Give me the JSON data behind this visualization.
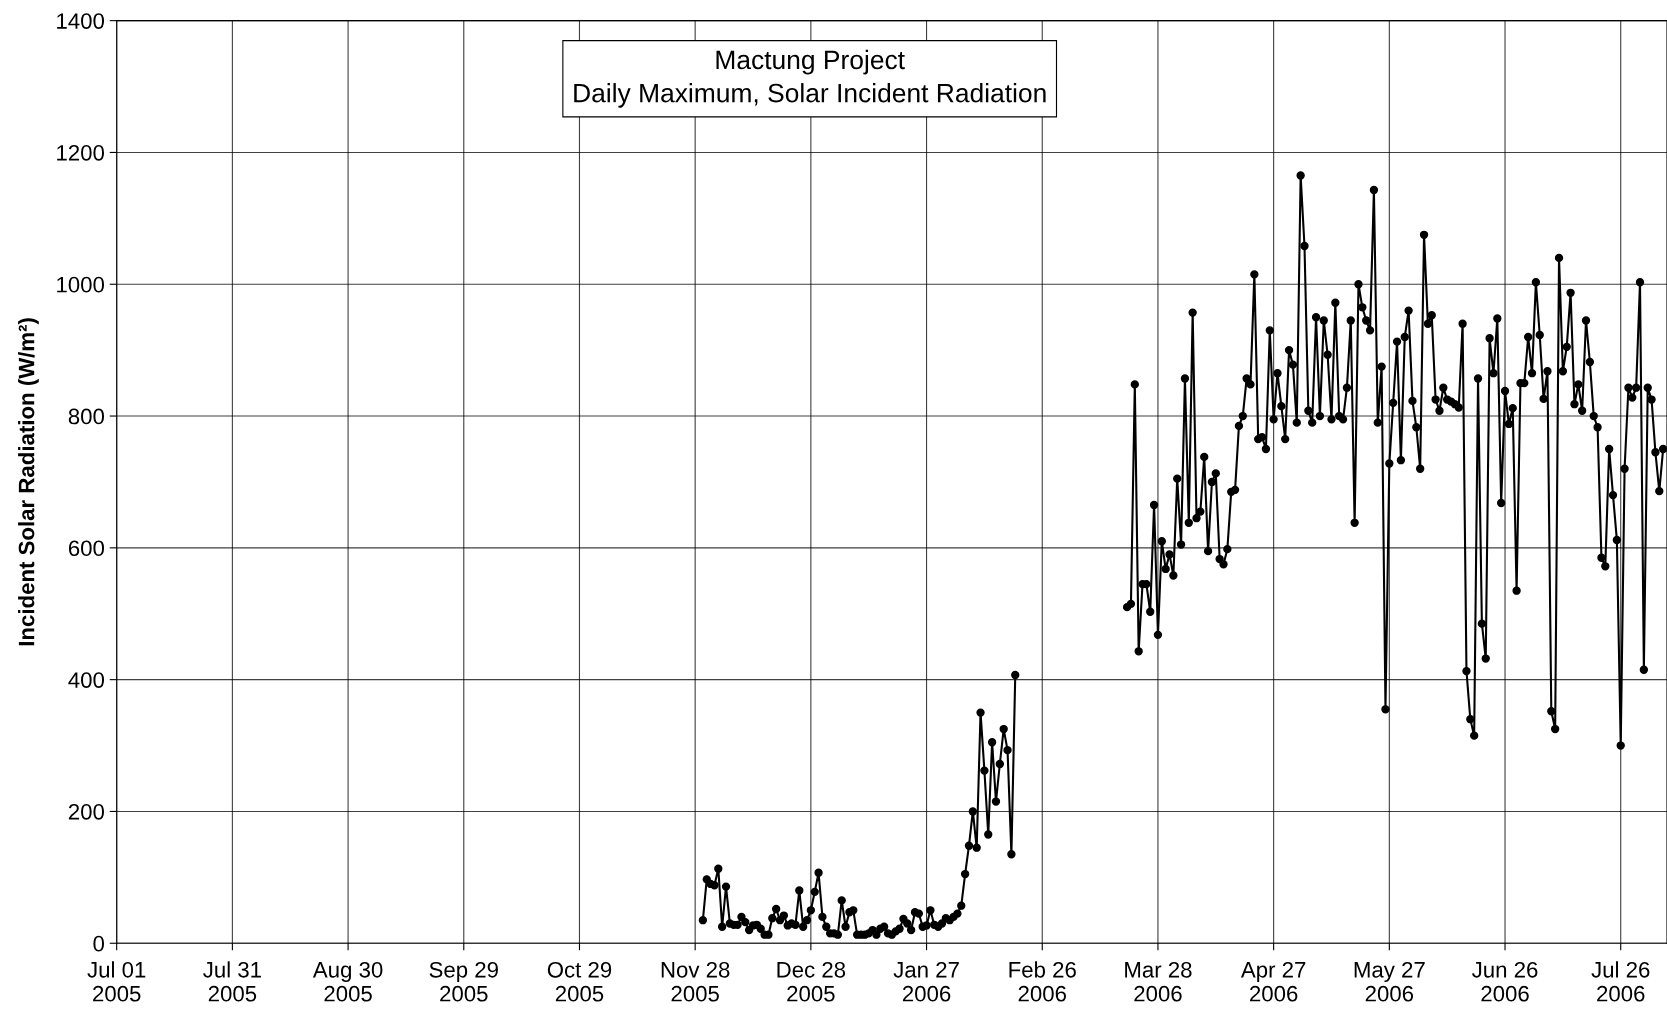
{
  "chart_data": {
    "type": "line",
    "title": "Mactung Project\nDaily Maximum, Solar Incident Radiation",
    "ylabel": "Incident Solar Radiation (W/m²)",
    "series": [
      {
        "color": "#000000",
        "x": [
          "2005-11-30",
          "2005-12-01",
          "2005-12-02",
          "2005-12-03",
          "2005-12-04",
          "2005-12-05",
          "2005-12-06",
          "2005-12-07",
          "2005-12-08",
          "2005-12-09",
          "2005-12-10",
          "2005-12-11",
          "2005-12-12",
          "2005-12-13",
          "2005-12-14",
          "2005-12-15",
          "2005-12-16",
          "2005-12-17",
          "2005-12-18",
          "2005-12-19",
          "2005-12-20",
          "2005-12-21",
          "2005-12-22",
          "2005-12-23",
          "2005-12-24",
          "2005-12-25",
          "2005-12-26",
          "2005-12-27",
          "2005-12-28",
          "2005-12-29",
          "2005-12-30",
          "2005-12-31",
          "2006-01-01",
          "2006-01-02",
          "2006-01-03",
          "2006-01-04",
          "2006-01-05",
          "2006-01-06",
          "2006-01-07",
          "2006-01-08",
          "2006-01-09",
          "2006-01-10",
          "2006-01-11",
          "2006-01-12",
          "2006-01-13",
          "2006-01-14",
          "2006-01-15",
          "2006-01-16",
          "2006-01-17",
          "2006-01-18",
          "2006-01-19",
          "2006-01-20",
          "2006-01-21",
          "2006-01-22",
          "2006-01-23",
          "2006-01-24",
          "2006-01-25",
          "2006-01-26",
          "2006-01-27",
          "2006-01-28",
          "2006-01-29",
          "2006-01-30",
          "2006-01-31",
          "2006-02-01",
          "2006-02-02",
          "2006-02-03",
          "2006-02-04",
          "2006-02-05",
          "2006-02-06",
          "2006-02-07",
          "2006-02-08",
          "2006-02-09",
          "2006-02-10",
          "2006-02-11",
          "2006-02-12",
          "2006-02-13",
          "2006-02-14",
          "2006-02-15",
          "2006-02-16",
          "2006-02-17",
          "2006-02-18",
          "2006-02-19"
        ],
        "values": [
          35,
          97,
          90,
          88,
          113,
          25,
          86,
          30,
          28,
          28,
          40,
          32,
          20,
          27,
          28,
          22,
          13,
          13,
          38,
          52,
          35,
          42,
          27,
          30,
          28,
          80,
          25,
          35,
          50,
          78,
          107,
          40,
          25,
          15,
          15,
          13,
          65,
          25,
          47,
          50,
          13,
          13,
          13,
          15,
          20,
          13,
          22,
          25,
          15,
          13,
          18,
          22,
          37,
          30,
          20,
          47,
          45,
          25,
          27,
          50,
          28,
          25,
          30,
          38,
          35,
          40,
          45,
          57,
          105,
          148,
          200,
          145,
          350,
          262,
          165,
          305,
          215,
          272,
          325,
          293,
          135,
          407
        ]
      },
      {
        "color": "#000000",
        "x": [
          "2006-03-20",
          "2006-03-21",
          "2006-03-22",
          "2006-03-23",
          "2006-03-24",
          "2006-03-25",
          "2006-03-26",
          "2006-03-27",
          "2006-03-28",
          "2006-03-29",
          "2006-03-30",
          "2006-03-31",
          "2006-04-01",
          "2006-04-02",
          "2006-04-03",
          "2006-04-04",
          "2006-04-05",
          "2006-04-06",
          "2006-04-07",
          "2006-04-08",
          "2006-04-09",
          "2006-04-10",
          "2006-04-11",
          "2006-04-12",
          "2006-04-13",
          "2006-04-14",
          "2006-04-15",
          "2006-04-16",
          "2006-04-17",
          "2006-04-18",
          "2006-04-19",
          "2006-04-20",
          "2006-04-21",
          "2006-04-22",
          "2006-04-23",
          "2006-04-24",
          "2006-04-25",
          "2006-04-26",
          "2006-04-27",
          "2006-04-28",
          "2006-04-29",
          "2006-04-30",
          "2006-05-01",
          "2006-05-02",
          "2006-05-03",
          "2006-05-04",
          "2006-05-05",
          "2006-05-06",
          "2006-05-07",
          "2006-05-08",
          "2006-05-09",
          "2006-05-10",
          "2006-05-11",
          "2006-05-12",
          "2006-05-13",
          "2006-05-14",
          "2006-05-15",
          "2006-05-16",
          "2006-05-17",
          "2006-05-18",
          "2006-05-19",
          "2006-05-20",
          "2006-05-21",
          "2006-05-22",
          "2006-05-23",
          "2006-05-24",
          "2006-05-25",
          "2006-05-26",
          "2006-05-27",
          "2006-05-28",
          "2006-05-29",
          "2006-05-30",
          "2006-05-31",
          "2006-06-01",
          "2006-06-02",
          "2006-06-03",
          "2006-06-04",
          "2006-06-05",
          "2006-06-06",
          "2006-06-07",
          "2006-06-08",
          "2006-06-09",
          "2006-06-10",
          "2006-06-11",
          "2006-06-12",
          "2006-06-13",
          "2006-06-14",
          "2006-06-15",
          "2006-06-16",
          "2006-06-17",
          "2006-06-18",
          "2006-06-19",
          "2006-06-20",
          "2006-06-21",
          "2006-06-22",
          "2006-06-23",
          "2006-06-24",
          "2006-06-25",
          "2006-06-26",
          "2006-06-27",
          "2006-06-28",
          "2006-06-29",
          "2006-06-30",
          "2006-07-01",
          "2006-07-02",
          "2006-07-03",
          "2006-07-04",
          "2006-07-05",
          "2006-07-06",
          "2006-07-07",
          "2006-07-08",
          "2006-07-09",
          "2006-07-10",
          "2006-07-11",
          "2006-07-12",
          "2006-07-13",
          "2006-07-14",
          "2006-07-15",
          "2006-07-16",
          "2006-07-17",
          "2006-07-18",
          "2006-07-19",
          "2006-07-20",
          "2006-07-21",
          "2006-07-22",
          "2006-07-23",
          "2006-07-24",
          "2006-07-25",
          "2006-07-26",
          "2006-07-27",
          "2006-07-28",
          "2006-07-29",
          "2006-07-30",
          "2006-07-31",
          "2006-08-01",
          "2006-08-02",
          "2006-08-03",
          "2006-08-04",
          "2006-08-05",
          "2006-08-06"
        ],
        "values": [
          510,
          515,
          848,
          443,
          545,
          545,
          503,
          665,
          468,
          610,
          568,
          590,
          558,
          705,
          605,
          857,
          638,
          957,
          645,
          655,
          738,
          595,
          700,
          713,
          583,
          575,
          598,
          685,
          688,
          785,
          800,
          857,
          848,
          1015,
          765,
          768,
          750,
          930,
          795,
          865,
          815,
          765,
          900,
          878,
          790,
          1165,
          1058,
          808,
          790,
          950,
          800,
          945,
          893,
          795,
          972,
          800,
          795,
          843,
          945,
          638,
          1000,
          965,
          945,
          930,
          1143,
          790,
          875,
          355,
          728,
          820,
          913,
          733,
          920,
          960,
          823,
          783,
          720,
          1075,
          940,
          953,
          825,
          808,
          843,
          825,
          822,
          818,
          813,
          940,
          413,
          340,
          315,
          857,
          485,
          432,
          918,
          865,
          948,
          668,
          838,
          788,
          812,
          535,
          850,
          850,
          920,
          865,
          1003,
          923,
          826,
          868,
          352,
          325,
          1040,
          868,
          905,
          987,
          818,
          848,
          808,
          945,
          882,
          800,
          783,
          585,
          572,
          750,
          680,
          612,
          300,
          720,
          843,
          828,
          843,
          1003,
          415,
          843,
          825,
          745,
          686,
          750
        ]
      }
    ],
    "xlim": [
      "2005-07-01",
      "2006-08-07"
    ],
    "xticks": [
      {
        "value": "2005-07-01",
        "label": "Jul 01\n2005"
      },
      {
        "value": "2005-07-31",
        "label": "Jul 31\n2005"
      },
      {
        "value": "2005-08-30",
        "label": "Aug 30\n2005"
      },
      {
        "value": "2005-09-29",
        "label": "Sep 29\n2005"
      },
      {
        "value": "2005-10-29",
        "label": "Oct 29\n2005"
      },
      {
        "value": "2005-11-28",
        "label": "Nov 28\n2005"
      },
      {
        "value": "2005-12-28",
        "label": "Dec 28\n2005"
      },
      {
        "value": "2006-01-27",
        "label": "Jan 27\n2006"
      },
      {
        "value": "2006-02-26",
        "label": "Feb 26\n2006"
      },
      {
        "value": "2006-03-28",
        "label": "Mar 28\n2006"
      },
      {
        "value": "2006-04-27",
        "label": "Apr 27\n2006"
      },
      {
        "value": "2006-05-27",
        "label": "May 27\n2006"
      },
      {
        "value": "2006-06-26",
        "label": "Jun 26\n2006"
      },
      {
        "value": "2006-07-26",
        "label": "Jul 26\n2006"
      }
    ],
    "ylim": [
      0,
      1400
    ],
    "yticks": [
      0,
      200,
      400,
      600,
      800,
      1000,
      1200,
      1400
    ],
    "grid": true,
    "marker": "circle",
    "line_style": "solid",
    "legend": false
  }
}
